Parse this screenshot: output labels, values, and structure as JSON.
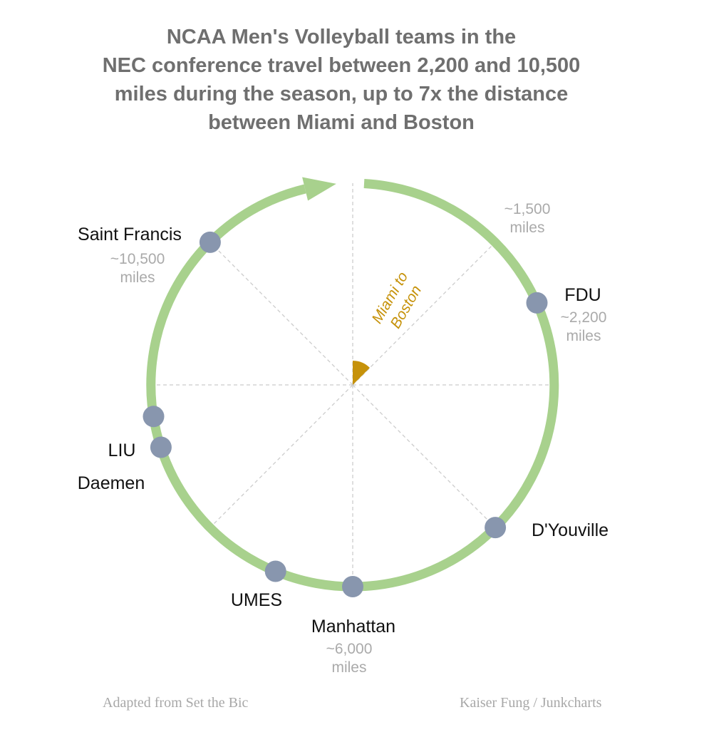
{
  "title_lines": [
    "NCAA Men's Volleyball teams in the",
    "NEC conference travel between 2,200 and 10,500",
    "miles during the season, up to 7x the distance",
    "between Miami and Boston"
  ],
  "chart_data": {
    "type": "radial",
    "full_circle_miles": 12000,
    "reference": {
      "label_lines": [
        "Miami to",
        "Boston"
      ],
      "miles": 1500
    },
    "tick_annotation": {
      "miles": 1500,
      "label_lines": [
        "~1,500",
        "miles"
      ]
    },
    "teams": [
      {
        "name": "FDU",
        "miles": 2200,
        "distance_lines": [
          "~2,200",
          "miles"
        ]
      },
      {
        "name": "D'Youville",
        "miles": 4500,
        "distance_lines": []
      },
      {
        "name": "Manhattan",
        "miles": 6000,
        "distance_lines": [
          "~6,000",
          "miles"
        ]
      },
      {
        "name": "UMES",
        "miles": 6750,
        "distance_lines": []
      },
      {
        "name": "Daemen",
        "miles": 8400,
        "distance_lines": []
      },
      {
        "name": "LIU",
        "miles": 8700,
        "distance_lines": []
      },
      {
        "name": "Saint Francis",
        "miles": 10500,
        "distance_lines": [
          "~10,500",
          "miles"
        ]
      }
    ]
  },
  "colors": {
    "ring": "#a8d18d",
    "dot": "#8896ae",
    "wedge": "#c6920a",
    "guide": "#cccccc",
    "muted_text": "#aaaaaa",
    "title": "#6f6f6f"
  },
  "credits": {
    "left": "Adapted from Set the Bic",
    "right": "Kaiser Fung / Junkcharts"
  }
}
